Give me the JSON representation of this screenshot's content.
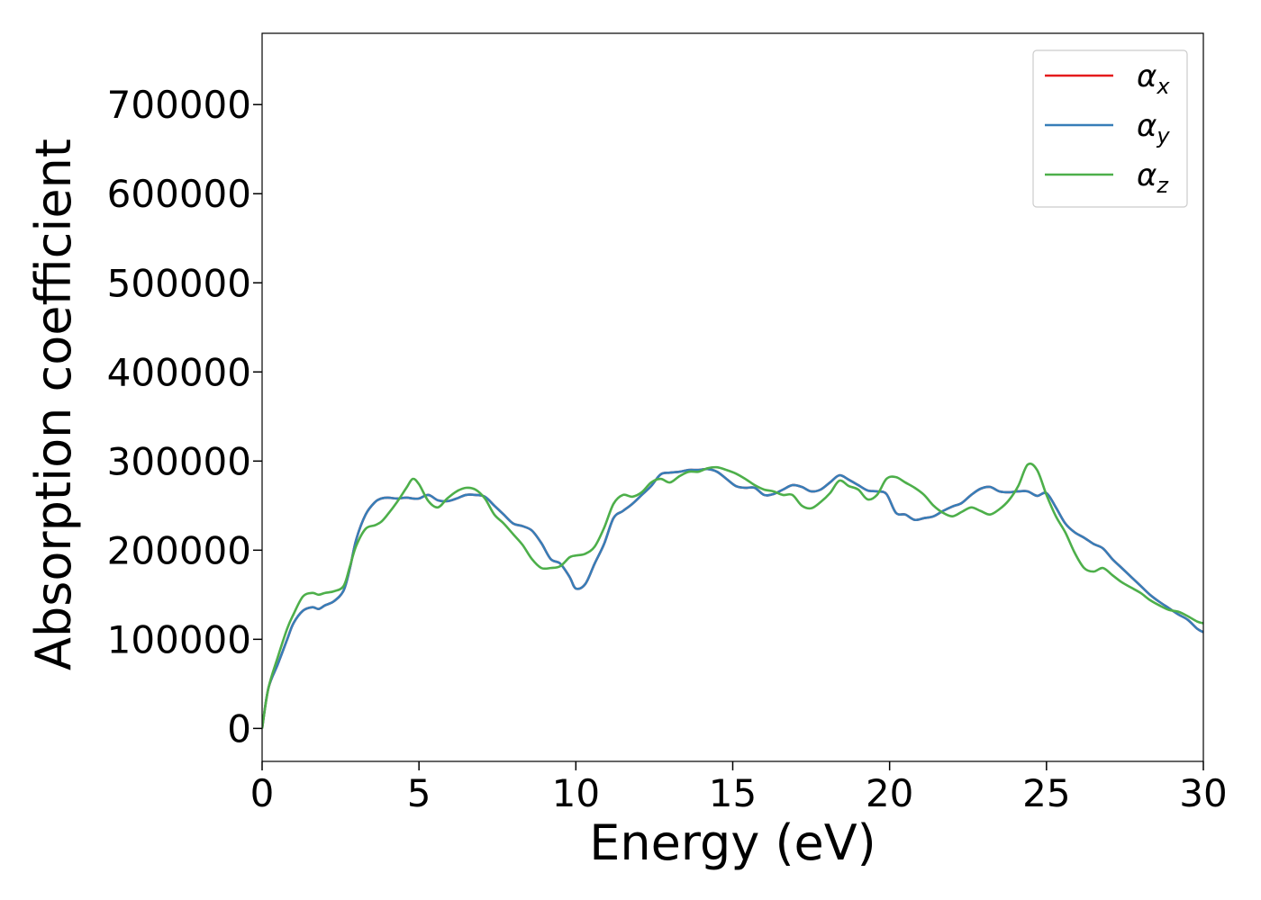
{
  "chart_data": {
    "type": "line",
    "xlabel": "Energy (eV)",
    "ylabel": "Absorption coefficient",
    "xlim": [
      0,
      30
    ],
    "ylim": [
      -37000,
      780000
    ],
    "xticks": [
      0,
      5,
      10,
      15,
      20,
      25,
      30
    ],
    "xtick_labels": [
      "0",
      "5",
      "10",
      "15",
      "20",
      "25",
      "30"
    ],
    "yticks": [
      0,
      100000,
      200000,
      300000,
      400000,
      500000,
      600000,
      700000
    ],
    "ytick_labels": [
      "0",
      "100000",
      "200000",
      "300000",
      "400000",
      "500000",
      "600000",
      "700000"
    ],
    "grid": false,
    "legend_position": "top-right",
    "x": [
      0,
      0.2,
      0.5,
      0.8,
      1.0,
      1.3,
      1.6,
      1.8,
      2.0,
      2.3,
      2.6,
      2.8,
      3.0,
      3.3,
      3.6,
      3.8,
      4.0,
      4.3,
      4.6,
      4.8,
      5.0,
      5.3,
      5.6,
      5.9,
      6.2,
      6.5,
      6.8,
      7.1,
      7.4,
      7.7,
      8.0,
      8.3,
      8.6,
      8.9,
      9.2,
      9.5,
      9.8,
      10.0,
      10.3,
      10.6,
      10.9,
      11.2,
      11.5,
      11.8,
      12.1,
      12.4,
      12.7,
      13.0,
      13.3,
      13.6,
      13.9,
      14.2,
      14.5,
      14.8,
      15.1,
      15.4,
      15.7,
      16.0,
      16.3,
      16.6,
      16.9,
      17.2,
      17.5,
      17.8,
      18.1,
      18.4,
      18.7,
      19.0,
      19.3,
      19.6,
      19.9,
      20.2,
      20.5,
      20.8,
      21.1,
      21.4,
      21.7,
      22.0,
      22.3,
      22.6,
      22.9,
      23.2,
      23.5,
      23.8,
      24.1,
      24.4,
      24.7,
      25.0,
      25.3,
      25.6,
      25.9,
      26.2,
      26.5,
      26.8,
      27.1,
      27.4,
      27.7,
      28.0,
      28.3,
      28.6,
      28.9,
      29.2,
      29.5,
      29.8,
      30.0
    ],
    "series": [
      {
        "name": "α_x",
        "color": "#e41a1c",
        "values": [
          0,
          45000,
          72000,
          100000,
          118000,
          132000,
          136000,
          134000,
          138000,
          143000,
          155000,
          180000,
          212000,
          240000,
          254000,
          258000,
          259000,
          258000,
          259000,
          258000,
          258000,
          262000,
          256000,
          255000,
          258000,
          262000,
          262000,
          260000,
          250000,
          240000,
          230000,
          227000,
          222000,
          208000,
          190000,
          185000,
          170000,
          157000,
          162000,
          185000,
          207000,
          236000,
          244000,
          252000,
          262000,
          272000,
          285000,
          287000,
          288000,
          290000,
          290000,
          291000,
          288000,
          280000,
          272000,
          270000,
          270000,
          262000,
          263000,
          268000,
          273000,
          271000,
          266000,
          268000,
          276000,
          284000,
          279000,
          273000,
          267000,
          266000,
          263000,
          242000,
          240000,
          234000,
          236000,
          238000,
          244000,
          249000,
          253000,
          262000,
          269000,
          271000,
          266000,
          265000,
          266000,
          266000,
          261000,
          264000,
          248000,
          230000,
          220000,
          214000,
          207000,
          202000,
          190000,
          180000,
          170000,
          160000,
          150000,
          142000,
          135000,
          128000,
          122000,
          112000,
          108000
        ]
      },
      {
        "name": "α_y",
        "color": "#377eb8",
        "values": [
          0,
          45000,
          72000,
          100000,
          118000,
          132000,
          136000,
          134000,
          138000,
          143000,
          155000,
          180000,
          212000,
          240000,
          254000,
          258000,
          259000,
          258000,
          259000,
          258000,
          258000,
          262000,
          256000,
          255000,
          258000,
          262000,
          262000,
          260000,
          250000,
          240000,
          230000,
          227000,
          222000,
          208000,
          190000,
          185000,
          170000,
          157000,
          162000,
          185000,
          207000,
          236000,
          244000,
          252000,
          262000,
          272000,
          285000,
          287000,
          288000,
          290000,
          290000,
          291000,
          288000,
          280000,
          272000,
          270000,
          270000,
          262000,
          263000,
          268000,
          273000,
          271000,
          266000,
          268000,
          276000,
          284000,
          279000,
          273000,
          267000,
          266000,
          263000,
          242000,
          240000,
          234000,
          236000,
          238000,
          244000,
          249000,
          253000,
          262000,
          269000,
          271000,
          266000,
          265000,
          266000,
          266000,
          261000,
          264000,
          248000,
          230000,
          220000,
          214000,
          207000,
          202000,
          190000,
          180000,
          170000,
          160000,
          150000,
          142000,
          135000,
          128000,
          122000,
          112000,
          108000
        ]
      },
      {
        "name": "α_z",
        "color": "#4daf4a",
        "values": [
          0,
          45000,
          80000,
          112000,
          128000,
          148000,
          152000,
          150000,
          152000,
          154000,
          160000,
          182000,
          205000,
          224000,
          228000,
          232000,
          240000,
          254000,
          270000,
          280000,
          274000,
          255000,
          248000,
          258000,
          266000,
          270000,
          268000,
          258000,
          240000,
          230000,
          218000,
          206000,
          190000,
          180000,
          180000,
          182000,
          192000,
          194000,
          196000,
          204000,
          225000,
          252000,
          262000,
          260000,
          265000,
          276000,
          280000,
          276000,
          283000,
          288000,
          288000,
          292000,
          293000,
          290000,
          286000,
          280000,
          273000,
          268000,
          266000,
          262000,
          262000,
          250000,
          247000,
          254000,
          264000,
          278000,
          272000,
          268000,
          257000,
          262000,
          280000,
          282000,
          276000,
          270000,
          262000,
          250000,
          242000,
          238000,
          243000,
          248000,
          244000,
          240000,
          246000,
          256000,
          272000,
          296000,
          290000,
          262000,
          238000,
          220000,
          197000,
          180000,
          176000,
          180000,
          172000,
          164000,
          158000,
          152000,
          144000,
          138000,
          133000,
          131000,
          126000,
          120000,
          118000
        ]
      }
    ]
  }
}
